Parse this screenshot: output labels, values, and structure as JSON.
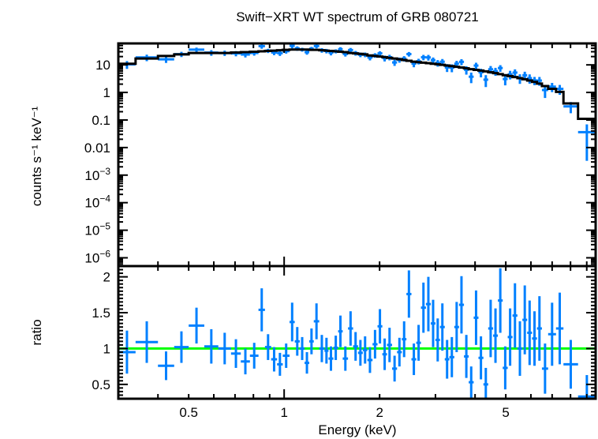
{
  "chart_data": [
    {
      "panel": "spectrum",
      "type": "scatter",
      "title": "Swift−XRT WT spectrum of GRB 080721",
      "xlabel": "Energy (keV)",
      "ylabel": "counts s⁻¹ keV⁻¹",
      "xscale": "log",
      "yscale": "log",
      "xlim": [
        0.3,
        9.6
      ],
      "ylim": [
        5e-07,
        60
      ],
      "ytick_labels": [
        {
          "v": 10,
          "t": "10"
        },
        {
          "v": 1,
          "t": "1"
        },
        {
          "v": 0.1,
          "t": "0.1"
        },
        {
          "v": 0.01,
          "t": "0.01"
        },
        {
          "v": 0.001,
          "t": "10−3"
        },
        {
          "v": 0.0001,
          "t": "10−4"
        },
        {
          "v": 1e-05,
          "t": "10−5"
        },
        {
          "v": 1e-06,
          "t": "10−6"
        }
      ],
      "series": [
        {
          "name": "data",
          "color": "#0080ff",
          "style": "crosses with error bars"
        },
        {
          "name": "model",
          "color": "#000000",
          "style": "step histogram"
        }
      ]
    },
    {
      "panel": "ratio",
      "type": "scatter",
      "xlabel": "Energy (keV)",
      "ylabel": "ratio",
      "xscale": "log",
      "yscale": "linear",
      "xlim": [
        0.3,
        9.6
      ],
      "ylim": [
        0.3,
        2.15
      ],
      "ytick_labels": [
        {
          "v": 2,
          "t": "2"
        },
        {
          "v": 1.5,
          "t": "1.5"
        },
        {
          "v": 1,
          "t": "1"
        },
        {
          "v": 0.5,
          "t": "0.5"
        }
      ],
      "xtick_labels": [
        {
          "v": 0.5,
          "t": "0.5"
        },
        {
          "v": 1,
          "t": "1"
        },
        {
          "v": 2,
          "t": "2"
        },
        {
          "v": 5,
          "t": "5"
        }
      ],
      "reference_line": {
        "value": 1,
        "color": "#00ff00"
      },
      "series": [
        {
          "name": "data/model",
          "color": "#0080ff"
        }
      ]
    }
  ],
  "bins": [
    {
      "lo": 0.3,
      "hi": 0.34,
      "model": 11.0,
      "ratio": 0.95,
      "err": 0.3
    },
    {
      "lo": 0.34,
      "hi": 0.4,
      "model": 17.0,
      "ratio": 1.09,
      "err": 0.29
    },
    {
      "lo": 0.4,
      "hi": 0.45,
      "model": 21.0,
      "ratio": 0.76,
      "err": 0.2
    },
    {
      "lo": 0.45,
      "hi": 0.5,
      "model": 24.0,
      "ratio": 1.02,
      "err": 0.22
    },
    {
      "lo": 0.5,
      "hi": 0.56,
      "model": 27.0,
      "ratio": 1.32,
      "err": 0.25
    },
    {
      "lo": 0.56,
      "hi": 0.62,
      "model": 27.0,
      "ratio": 1.03,
      "err": 0.24
    },
    {
      "lo": 0.62,
      "hi": 0.68,
      "model": 27.0,
      "ratio": 1.0,
      "err": 0.22
    },
    {
      "lo": 0.68,
      "hi": 0.73,
      "model": 28.0,
      "ratio": 0.93,
      "err": 0.2
    },
    {
      "lo": 0.73,
      "hi": 0.78,
      "model": 29.0,
      "ratio": 0.82,
      "err": 0.18
    },
    {
      "lo": 0.78,
      "hi": 0.83,
      "model": 30.0,
      "ratio": 0.9,
      "err": 0.18
    },
    {
      "lo": 0.83,
      "hi": 0.87,
      "model": 31.0,
      "ratio": 1.54,
      "err": 0.3
    },
    {
      "lo": 0.87,
      "hi": 0.91,
      "model": 32.0,
      "ratio": 1.02,
      "err": 0.18
    },
    {
      "lo": 0.91,
      "hi": 0.95,
      "model": 33.0,
      "ratio": 0.85,
      "err": 0.17
    },
    {
      "lo": 0.95,
      "hi": 0.99,
      "model": 34.0,
      "ratio": 0.78,
      "err": 0.16
    },
    {
      "lo": 0.99,
      "hi": 1.04,
      "model": 35.0,
      "ratio": 0.9,
      "err": 0.17
    },
    {
      "lo": 1.04,
      "hi": 1.08,
      "model": 36.0,
      "ratio": 1.37,
      "err": 0.27
    },
    {
      "lo": 1.08,
      "hi": 1.12,
      "model": 36.0,
      "ratio": 1.1,
      "err": 0.2
    },
    {
      "lo": 1.12,
      "hi": 1.16,
      "model": 36.0,
      "ratio": 1.0,
      "err": 0.16
    },
    {
      "lo": 1.16,
      "hi": 1.2,
      "model": 36.0,
      "ratio": 0.8,
      "err": 0.15
    },
    {
      "lo": 1.2,
      "hi": 1.24,
      "model": 35.0,
      "ratio": 1.1,
      "err": 0.18
    },
    {
      "lo": 1.24,
      "hi": 1.29,
      "model": 35.0,
      "ratio": 1.38,
      "err": 0.25
    },
    {
      "lo": 1.29,
      "hi": 1.34,
      "model": 34.0,
      "ratio": 1.0,
      "err": 0.19
    },
    {
      "lo": 1.34,
      "hi": 1.38,
      "model": 33.0,
      "ratio": 0.97,
      "err": 0.18
    },
    {
      "lo": 1.38,
      "hi": 1.43,
      "model": 32.0,
      "ratio": 0.86,
      "err": 0.17
    },
    {
      "lo": 1.43,
      "hi": 1.48,
      "model": 31.0,
      "ratio": 1.01,
      "err": 0.17
    },
    {
      "lo": 1.48,
      "hi": 1.53,
      "model": 30.0,
      "ratio": 1.24,
      "err": 0.22
    },
    {
      "lo": 1.53,
      "hi": 1.59,
      "model": 29.0,
      "ratio": 0.86,
      "err": 0.17
    },
    {
      "lo": 1.59,
      "hi": 1.65,
      "model": 27.0,
      "ratio": 1.28,
      "err": 0.24
    },
    {
      "lo": 1.65,
      "hi": 1.71,
      "model": 26.0,
      "ratio": 1.03,
      "err": 0.2
    },
    {
      "lo": 1.71,
      "hi": 1.77,
      "model": 25.0,
      "ratio": 0.94,
      "err": 0.18
    },
    {
      "lo": 1.77,
      "hi": 1.83,
      "model": 24.0,
      "ratio": 0.98,
      "err": 0.19
    },
    {
      "lo": 1.83,
      "hi": 1.9,
      "model": 22.0,
      "ratio": 0.84,
      "err": 0.18
    },
    {
      "lo": 1.9,
      "hi": 1.97,
      "model": 21.0,
      "ratio": 1.06,
      "err": 0.2
    },
    {
      "lo": 1.97,
      "hi": 2.04,
      "model": 20.0,
      "ratio": 1.31,
      "err": 0.24
    },
    {
      "lo": 2.04,
      "hi": 2.11,
      "model": 19.0,
      "ratio": 0.92,
      "err": 0.22
    },
    {
      "lo": 2.11,
      "hi": 2.19,
      "model": 18.0,
      "ratio": 1.05,
      "err": 0.24
    },
    {
      "lo": 2.19,
      "hi": 2.27,
      "model": 17.0,
      "ratio": 0.72,
      "err": 0.18
    },
    {
      "lo": 2.27,
      "hi": 2.35,
      "model": 16.0,
      "ratio": 0.95,
      "err": 0.2
    },
    {
      "lo": 2.35,
      "hi": 2.43,
      "model": 15.0,
      "ratio": 1.13,
      "err": 0.25
    },
    {
      "lo": 2.43,
      "hi": 2.52,
      "model": 14.0,
      "ratio": 1.76,
      "err": 0.33
    },
    {
      "lo": 2.52,
      "hi": 2.61,
      "model": 13.0,
      "ratio": 0.85,
      "err": 0.22
    },
    {
      "lo": 2.61,
      "hi": 2.7,
      "model": 12.5,
      "ratio": 1.08,
      "err": 0.25
    },
    {
      "lo": 2.7,
      "hi": 2.8,
      "model": 12.0,
      "ratio": 1.57,
      "err": 0.35
    },
    {
      "lo": 2.8,
      "hi": 2.9,
      "model": 11.5,
      "ratio": 1.62,
      "err": 0.38
    },
    {
      "lo": 2.9,
      "hi": 3.0,
      "model": 11.0,
      "ratio": 1.35,
      "err": 0.33
    },
    {
      "lo": 3.0,
      "hi": 3.1,
      "model": 10.5,
      "ratio": 1.12,
      "err": 0.3
    },
    {
      "lo": 3.1,
      "hi": 3.21,
      "model": 10.0,
      "ratio": 1.3,
      "err": 0.33
    },
    {
      "lo": 3.21,
      "hi": 3.32,
      "model": 9.5,
      "ratio": 0.85,
      "err": 0.27
    },
    {
      "lo": 3.32,
      "hi": 3.44,
      "model": 9.0,
      "ratio": 0.88,
      "err": 0.28
    },
    {
      "lo": 3.44,
      "hi": 3.56,
      "model": 8.5,
      "ratio": 1.3,
      "err": 0.35
    },
    {
      "lo": 3.56,
      "hi": 3.69,
      "model": 8.0,
      "ratio": 1.61,
      "err": 0.4
    },
    {
      "lo": 3.69,
      "hi": 3.82,
      "model": 7.5,
      "ratio": 0.89,
      "err": 0.3
    },
    {
      "lo": 3.82,
      "hi": 3.96,
      "model": 7.0,
      "ratio": 0.53,
      "err": 0.22
    },
    {
      "lo": 3.96,
      "hi": 4.1,
      "model": 6.6,
      "ratio": 1.43,
      "err": 0.38
    },
    {
      "lo": 4.1,
      "hi": 4.25,
      "model": 6.2,
      "ratio": 0.87,
      "err": 0.3
    },
    {
      "lo": 4.25,
      "hi": 4.4,
      "model": 5.8,
      "ratio": 0.5,
      "err": 0.23
    },
    {
      "lo": 4.4,
      "hi": 4.56,
      "model": 5.4,
      "ratio": 1.28,
      "err": 0.4
    },
    {
      "lo": 4.56,
      "hi": 4.72,
      "model": 5.0,
      "ratio": 1.18,
      "err": 0.38
    },
    {
      "lo": 4.72,
      "hi": 4.89,
      "model": 4.6,
      "ratio": 1.67,
      "err": 0.45
    },
    {
      "lo": 4.89,
      "hi": 5.07,
      "model": 4.2,
      "ratio": 0.73,
      "err": 0.3
    },
    {
      "lo": 5.07,
      "hi": 5.25,
      "model": 3.9,
      "ratio": 1.16,
      "err": 0.4
    },
    {
      "lo": 5.25,
      "hi": 5.44,
      "model": 3.6,
      "ratio": 1.46,
      "err": 0.45
    },
    {
      "lo": 5.44,
      "hi": 5.64,
      "model": 3.3,
      "ratio": 1.0,
      "err": 0.38
    },
    {
      "lo": 5.64,
      "hi": 5.84,
      "model": 3.0,
      "ratio": 1.4,
      "err": 0.48
    },
    {
      "lo": 5.84,
      "hi": 6.05,
      "model": 2.7,
      "ratio": 1.22,
      "err": 0.45
    },
    {
      "lo": 6.05,
      "hi": 6.27,
      "model": 2.4,
      "ratio": 1.14,
      "err": 0.38
    },
    {
      "lo": 6.27,
      "hi": 6.5,
      "model": 2.1,
      "ratio": 1.28,
      "err": 0.45
    },
    {
      "lo": 6.5,
      "hi": 6.8,
      "model": 1.7,
      "ratio": 0.72,
      "err": 0.35
    },
    {
      "lo": 6.8,
      "hi": 7.2,
      "model": 1.35,
      "ratio": 1.2,
      "err": 0.44
    },
    {
      "lo": 7.2,
      "hi": 7.6,
      "model": 1.05,
      "ratio": 1.28,
      "err": 0.5
    },
    {
      "lo": 7.6,
      "hi": 8.45,
      "model": 0.4,
      "ratio": 0.78,
      "err": 0.34
    },
    {
      "lo": 8.45,
      "hi": 9.6,
      "model": 0.11,
      "ratio": 0.33,
      "err": 0.3
    }
  ]
}
